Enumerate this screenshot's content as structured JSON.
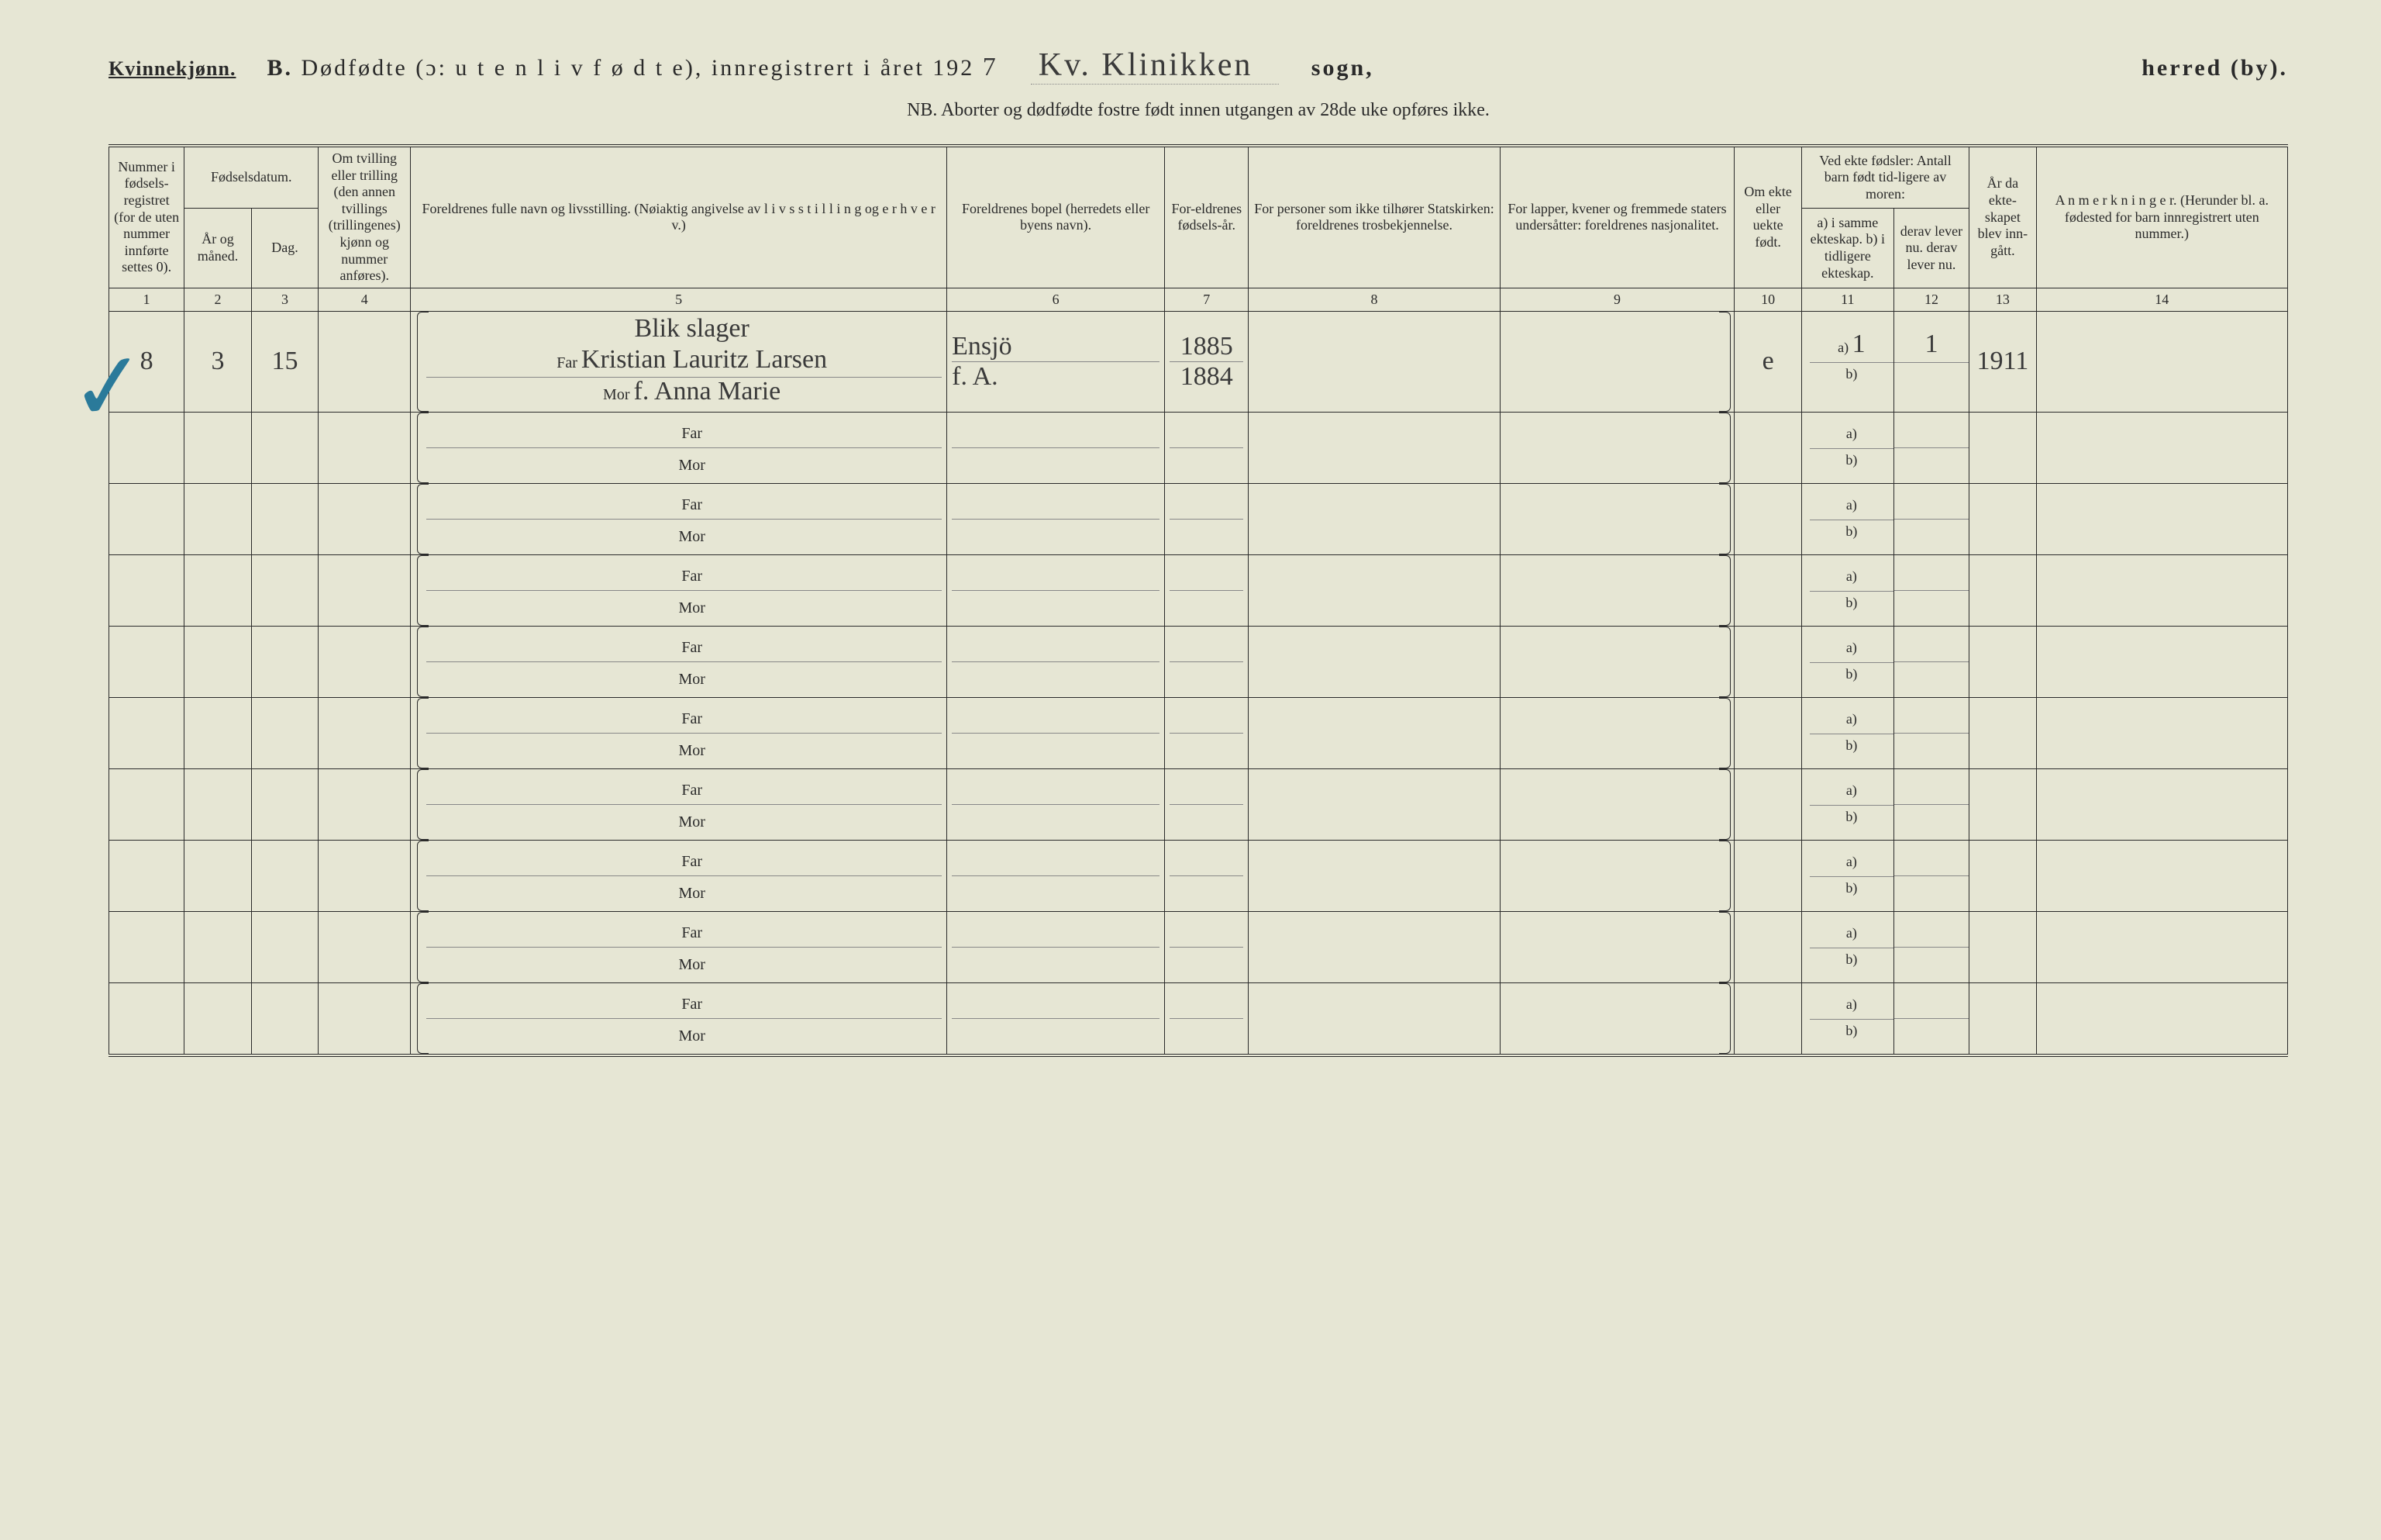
{
  "header": {
    "gender": "Kvinnekjønn.",
    "section_letter": "B.",
    "title_main": "Dødfødte (ɔ: u t e n  l i v  f ø d t e), innregistrert i året 192",
    "year_suffix_hand": "7",
    "parish_hand": "Kv. Klinikken",
    "sogn_label": "sogn,",
    "herred_label": "herred (by).",
    "nb_line": "NB.  Aborter og dødfødte fostre født innen utgangen av 28de uke opføres ikke."
  },
  "columns": {
    "c1": "Nummer i fødsels-registret (for de uten nummer innførte settes 0).",
    "c2_group": "Fødselsdatum.",
    "c2": "År og måned.",
    "c3": "Dag.",
    "c4": "Om tvilling eller trilling (den annen tvillings (trillingenes) kjønn og nummer anføres).",
    "c5": "Foreldrenes fulle navn og livsstilling. (Nøiaktig angivelse av l i v s s t i l l i n g  og e r h v e r v.)",
    "c6": "Foreldrenes bopel (herredets eller byens navn).",
    "c7": "For-eldrenes fødsels-år.",
    "c8": "For personer som ikke tilhører Statskirken: foreldrenes trosbekjennelse.",
    "c9": "For lapper, kvener og fremmede staters undersåtter: foreldrenes nasjonalitet.",
    "c10": "Om ekte eller uekte født.",
    "c11_group": "Ved ekte fødsler: Antall barn født tid-ligere av moren:",
    "c11": "a) i samme ekteskap. b) i tidligere ekteskap.",
    "c12": "derav lever nu. derav lever nu.",
    "c13": "År da ekte-skapet blev inn-gått.",
    "c14": "A n m e r k n i n g e r. (Herunder bl. a. fødested for barn innregistrert uten nummer.)"
  },
  "colnums": [
    "1",
    "2",
    "3",
    "4",
    "5",
    "6",
    "7",
    "8",
    "9",
    "10",
    "11",
    "12",
    "13",
    "14"
  ],
  "parent_labels": {
    "far": "Far",
    "mor": "Mor"
  },
  "ab_labels": {
    "a": "a)",
    "b": "b)"
  },
  "rows": [
    {
      "num": "8",
      "year_month": "3",
      "day": "15",
      "twin": "",
      "far_occupation": "Blik slager",
      "far_name": "Kristian Lauritz Larsen",
      "mor_occupation": "f.",
      "mor_name": "Anna Marie",
      "far_bopel": "Ensjö",
      "mor_bopel": "f. A.",
      "far_year": "1885",
      "mor_year": "1884",
      "stats": "",
      "nasj": "",
      "ekte": "e",
      "a_same": "1",
      "a_lever": "1",
      "year_married": "1911",
      "remarks": ""
    },
    {},
    {},
    {},
    {},
    {},
    {},
    {},
    {},
    {}
  ]
}
